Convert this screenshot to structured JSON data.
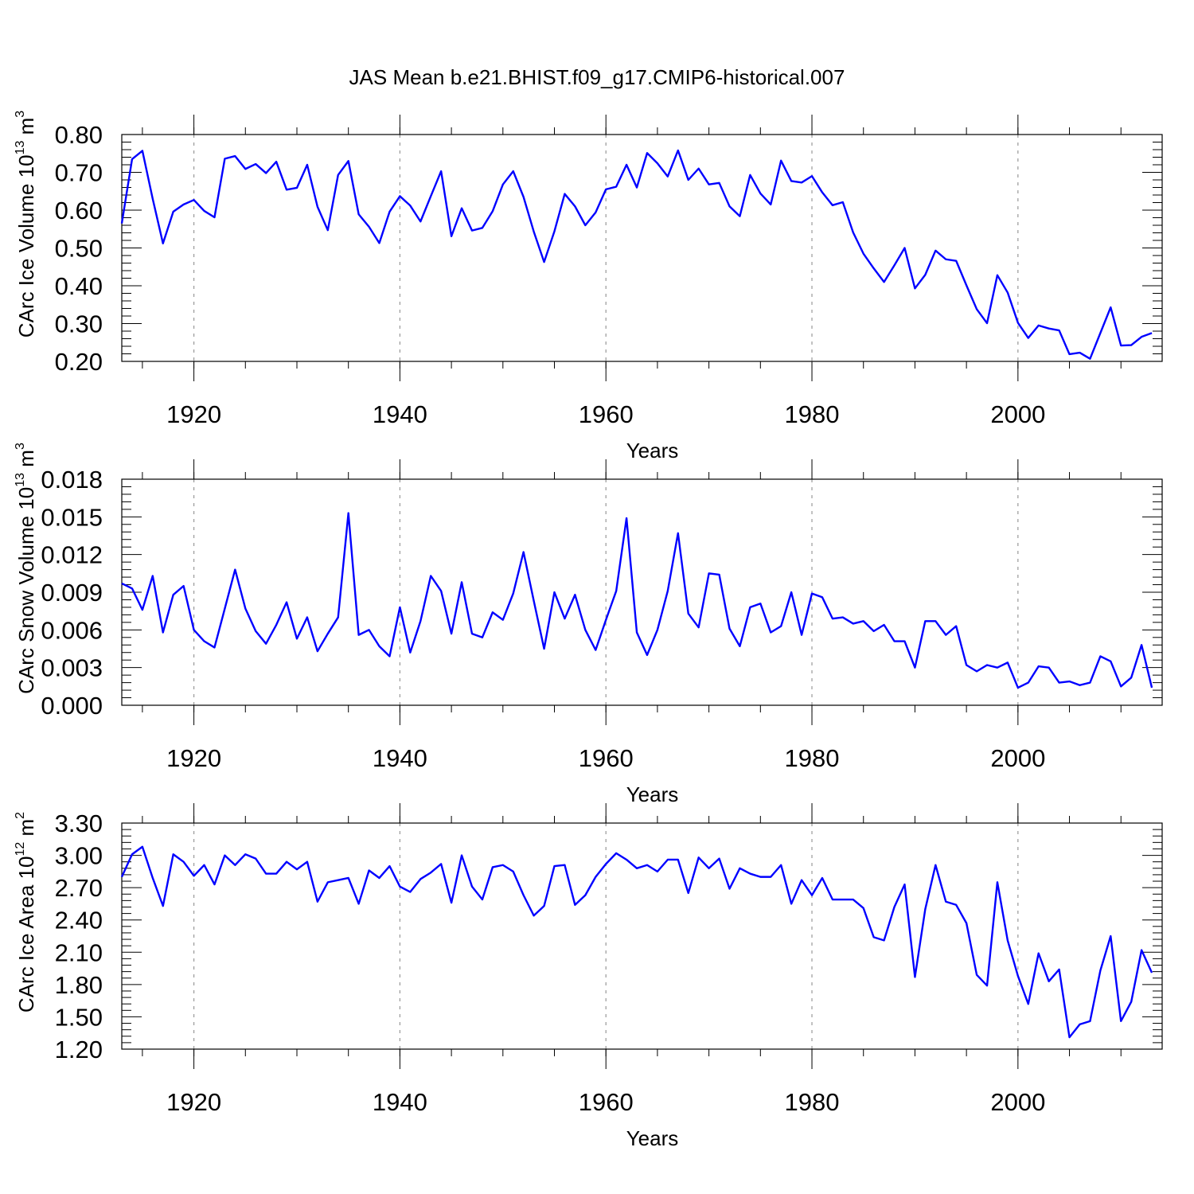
{
  "figure": {
    "title": "JAS Mean b.e21.BHIST.f09_g17.CMIP6-historical.007"
  },
  "chart_data": [
    {
      "type": "line",
      "xlabel": "Years",
      "ylabel": {
        "text": "CArc Ice Volume 10",
        "exp": "13",
        "unit": " m",
        "unit_exp": "3"
      },
      "xlim": [
        1913,
        2014
      ],
      "ylim": [
        0.2,
        0.8
      ],
      "xticks": [
        "1920",
        "1940",
        "1960",
        "1980",
        "2000"
      ],
      "yticks": [
        "0.20",
        "0.30",
        "0.40",
        "0.50",
        "0.60",
        "0.70",
        "0.80"
      ],
      "color": "#0000ff",
      "grid": "vertical-dashed",
      "x_start": 1913,
      "values": [
        0.565,
        0.735,
        0.757,
        0.63,
        0.512,
        0.596,
        0.615,
        0.627,
        0.598,
        0.581,
        0.736,
        0.743,
        0.709,
        0.722,
        0.698,
        0.728,
        0.654,
        0.659,
        0.72,
        0.609,
        0.547,
        0.693,
        0.73,
        0.589,
        0.556,
        0.513,
        0.596,
        0.637,
        0.612,
        0.57,
        0.637,
        0.703,
        0.531,
        0.605,
        0.546,
        0.553,
        0.597,
        0.668,
        0.703,
        0.635,
        0.543,
        0.463,
        0.544,
        0.643,
        0.61,
        0.56,
        0.594,
        0.655,
        0.662,
        0.72,
        0.66,
        0.751,
        0.724,
        0.689,
        0.758,
        0.68,
        0.71,
        0.668,
        0.672,
        0.61,
        0.584,
        0.693,
        0.644,
        0.615,
        0.731,
        0.677,
        0.673,
        0.69,
        0.647,
        0.613,
        0.621,
        0.541,
        0.485,
        0.446,
        0.41,
        0.454,
        0.5,
        0.393,
        0.429,
        0.493,
        0.47,
        0.466,
        0.401,
        0.338,
        0.301,
        0.428,
        0.382,
        0.302,
        0.262,
        0.295,
        0.287,
        0.282,
        0.219,
        0.223,
        0.207,
        0.275,
        0.343,
        0.242,
        0.243,
        0.265,
        0.275
      ]
    },
    {
      "type": "line",
      "xlabel": "Years",
      "ylabel": {
        "text": "CArc Snow Volume 10",
        "exp": "13",
        "unit": " m",
        "unit_exp": "3"
      },
      "xlim": [
        1913,
        2014
      ],
      "ylim": [
        0.0,
        0.018
      ],
      "xticks": [
        "1920",
        "1940",
        "1960",
        "1980",
        "2000"
      ],
      "yticks": [
        "0.000",
        "0.003",
        "0.006",
        "0.009",
        "0.012",
        "0.015",
        "0.018"
      ],
      "color": "#0000ff",
      "grid": "vertical-dashed",
      "x_start": 1913,
      "values": [
        0.0097,
        0.0093,
        0.0076,
        0.0103,
        0.0058,
        0.0088,
        0.0095,
        0.006,
        0.0051,
        0.0046,
        0.0077,
        0.0108,
        0.0077,
        0.0059,
        0.0049,
        0.0064,
        0.0082,
        0.0053,
        0.007,
        0.0043,
        0.0057,
        0.007,
        0.0153,
        0.0056,
        0.006,
        0.0047,
        0.0039,
        0.0078,
        0.0042,
        0.0067,
        0.0103,
        0.0091,
        0.0057,
        0.0098,
        0.0057,
        0.0054,
        0.0074,
        0.0068,
        0.0089,
        0.0122,
        0.0083,
        0.0045,
        0.009,
        0.0069,
        0.0088,
        0.006,
        0.0044,
        0.0068,
        0.0091,
        0.0149,
        0.0058,
        0.004,
        0.006,
        0.0091,
        0.0137,
        0.0073,
        0.0062,
        0.0105,
        0.0104,
        0.0061,
        0.0047,
        0.0078,
        0.0081,
        0.0058,
        0.0063,
        0.009,
        0.0056,
        0.0089,
        0.0086,
        0.0069,
        0.007,
        0.0065,
        0.0067,
        0.0059,
        0.0064,
        0.0051,
        0.0051,
        0.003,
        0.0067,
        0.0067,
        0.0056,
        0.0063,
        0.0032,
        0.0027,
        0.0032,
        0.003,
        0.0034,
        0.0014,
        0.0018,
        0.0031,
        0.003,
        0.0018,
        0.0019,
        0.0016,
        0.0018,
        0.0039,
        0.0035,
        0.0015,
        0.0022,
        0.0048,
        0.0014
      ]
    },
    {
      "type": "line",
      "xlabel": "Years",
      "ylabel": {
        "text": "CArc Ice Area 10",
        "exp": "12",
        "unit": " m",
        "unit_exp": "2"
      },
      "xlim": [
        1913,
        2014
      ],
      "ylim": [
        1.2,
        3.3
      ],
      "xticks": [
        "1920",
        "1940",
        "1960",
        "1980",
        "2000"
      ],
      "yticks": [
        "1.20",
        "1.50",
        "1.80",
        "2.10",
        "2.40",
        "2.70",
        "3.00",
        "3.30"
      ],
      "color": "#0000ff",
      "grid": "vertical-dashed",
      "x_start": 1913,
      "values": [
        2.8,
        3.01,
        3.08,
        2.79,
        2.53,
        3.01,
        2.94,
        2.81,
        2.91,
        2.73,
        3.0,
        2.91,
        3.01,
        2.97,
        2.83,
        2.83,
        2.94,
        2.87,
        2.94,
        2.57,
        2.75,
        2.77,
        2.79,
        2.55,
        2.86,
        2.79,
        2.9,
        2.71,
        2.66,
        2.78,
        2.84,
        2.92,
        2.56,
        3.0,
        2.71,
        2.59,
        2.89,
        2.91,
        2.85,
        2.63,
        2.44,
        2.53,
        2.9,
        2.91,
        2.54,
        2.63,
        2.8,
        2.92,
        3.02,
        2.96,
        2.88,
        2.91,
        2.85,
        2.96,
        2.96,
        2.65,
        2.98,
        2.88,
        2.97,
        2.69,
        2.88,
        2.83,
        2.8,
        2.8,
        2.91,
        2.55,
        2.77,
        2.63,
        2.79,
        2.59,
        2.59,
        2.59,
        2.51,
        2.24,
        2.21,
        2.52,
        2.73,
        1.87,
        2.5,
        2.91,
        2.57,
        2.54,
        2.37,
        1.89,
        1.79,
        2.75,
        2.21,
        1.88,
        1.62,
        2.09,
        1.83,
        1.94,
        1.31,
        1.43,
        1.46,
        1.93,
        2.25,
        1.46,
        1.64,
        2.12,
        1.91
      ]
    }
  ]
}
